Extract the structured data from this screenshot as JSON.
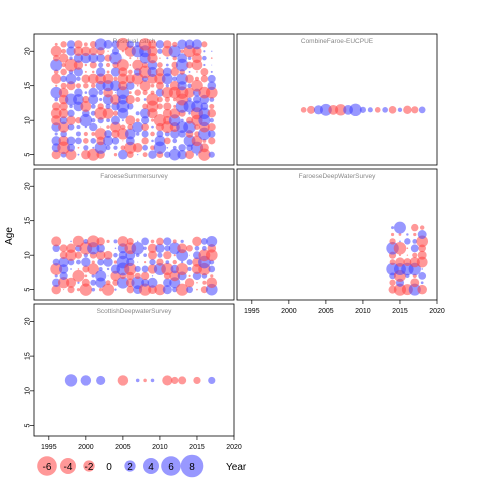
{
  "chart_data": {
    "type": "scatter",
    "subtype": "bubble-residuals",
    "ylabel": "Age",
    "xlabel": "Year",
    "xlim": [
      1993,
      2020
    ],
    "ylim": [
      3.5,
      22.5
    ],
    "x_ticks": [
      1995,
      2000,
      2005,
      2010,
      2015,
      2020
    ],
    "y_ticks": [
      5,
      10,
      15,
      20
    ],
    "colors": {
      "positive": "#4444ff",
      "negative": "#ff4444"
    },
    "panels": [
      {
        "title": "Residual catch",
        "age_range": [
          5,
          21
        ],
        "year_range": [
          1996,
          2017
        ]
      },
      {
        "title": "CombineFaroe-EUCPUE",
        "points": [
          {
            "x": 2002,
            "y": 11.5,
            "v": -0.5
          },
          {
            "x": 2003,
            "y": 11.5,
            "v": -1.0
          },
          {
            "x": 2004,
            "y": 11.5,
            "v": 1.3
          },
          {
            "x": 2005,
            "y": 11.5,
            "v": 2.2
          },
          {
            "x": 2006,
            "y": 11.5,
            "v": -1.5
          },
          {
            "x": 2007,
            "y": 11.5,
            "v": -2.0
          },
          {
            "x": 2008,
            "y": 11.5,
            "v": 1.5
          },
          {
            "x": 2009,
            "y": 11.5,
            "v": 2.4
          },
          {
            "x": 2010,
            "y": 11.5,
            "v": 0.6
          },
          {
            "x": 2011,
            "y": 11.5,
            "v": 0.4
          },
          {
            "x": 2012,
            "y": 11.5,
            "v": -0.5
          },
          {
            "x": 2013,
            "y": 11.5,
            "v": 0.5
          },
          {
            "x": 2014,
            "y": 11.5,
            "v": -0.9
          },
          {
            "x": 2015,
            "y": 11.5,
            "v": 0.3
          },
          {
            "x": 2016,
            "y": 11.5,
            "v": -1.1
          },
          {
            "x": 2017,
            "y": 11.5,
            "v": -0.8
          },
          {
            "x": 2018,
            "y": 11.5,
            "v": 0.7
          }
        ]
      },
      {
        "title": "FaroeseSummersurvey",
        "age_range": [
          5,
          12
        ],
        "year_range": [
          1996,
          2017
        ]
      },
      {
        "title": "FaroeseDeepWaterSurvey",
        "age_range": [
          5,
          14
        ],
        "year_range": [
          2014,
          2018
        ]
      },
      {
        "title": "ScottishDeepwaterSurvey",
        "points": [
          {
            "x": 1998,
            "y": 11.5,
            "v": 2.4
          },
          {
            "x": 2000,
            "y": 11.5,
            "v": 1.7
          },
          {
            "x": 2002,
            "y": 11.5,
            "v": 1.3
          },
          {
            "x": 2005,
            "y": 11.5,
            "v": -1.7
          },
          {
            "x": 2007,
            "y": 11.5,
            "v": 0.2
          },
          {
            "x": 2008,
            "y": 11.5,
            "v": -0.2
          },
          {
            "x": 2009,
            "y": 11.5,
            "v": 0.2
          },
          {
            "x": 2011,
            "y": 11.5,
            "v": -1.6
          },
          {
            "x": 2012,
            "y": 11.5,
            "v": -0.8
          },
          {
            "x": 2013,
            "y": 11.5,
            "v": -1.0
          },
          {
            "x": 2015,
            "y": 11.5,
            "v": -0.8
          },
          {
            "x": 2017,
            "y": 11.5,
            "v": 0.8
          }
        ]
      }
    ],
    "legend": {
      "values": [
        -6,
        -4,
        -2,
        0,
        2,
        4,
        6,
        8
      ],
      "labels": [
        "-6",
        "-4",
        "-2",
        "0",
        "2",
        "4",
        "6",
        "8"
      ],
      "placement": "bottom-left"
    }
  }
}
